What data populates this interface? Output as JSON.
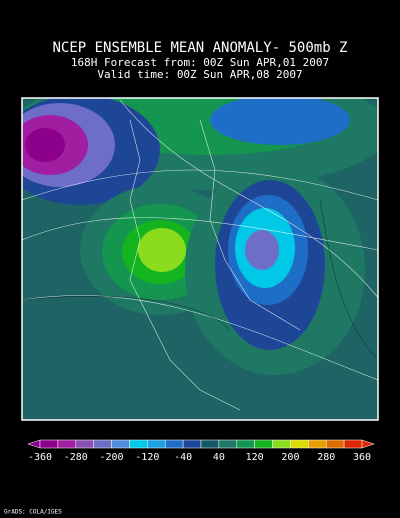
{
  "header": {
    "title": "NCEP ENSEMBLE MEAN ANOMALY- 500mb Z",
    "forecast": "168H Forecast from: 00Z Sun APR,01 2007",
    "valid": "Valid time: 00Z Sun APR,08 2007"
  },
  "colorbar": {
    "labels": [
      -360,
      -280,
      -200,
      -120,
      -40,
      40,
      120,
      200,
      280,
      360
    ],
    "colors": [
      "#8c008c",
      "#a01ea0",
      "#8c50b4",
      "#6e6ec8",
      "#508cdc",
      "#00c8e6",
      "#1ea0e6",
      "#1e6ec8",
      "#1e4696",
      "#145a64",
      "#1e7864",
      "#149650",
      "#14b41e",
      "#8cdc1e",
      "#dcdc00",
      "#e6a000",
      "#dc6e00",
      "#dc2800"
    ]
  },
  "footer": "GrADS: COLA/IGES"
}
